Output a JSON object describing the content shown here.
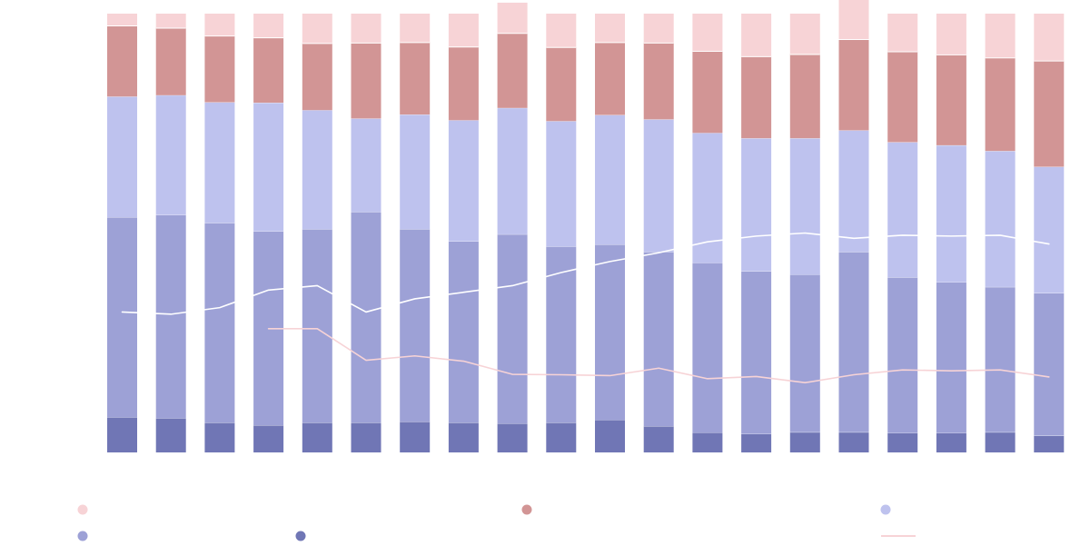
{
  "chart_data": {
    "type": "bar",
    "stacked": true,
    "percent_stacked": true,
    "title": "",
    "xlabel": "",
    "ylabel": "",
    "ylim": [
      0,
      100
    ],
    "grid": false,
    "legend_position": "bottom",
    "categories": [
      "",
      "",
      "",
      "",
      "",
      "",
      "",
      "",
      "",
      "",
      "",
      "",
      "",
      "",
      "",
      "",
      "",
      "",
      "",
      ""
    ],
    "series": [
      {
        "color": "#7076b5",
        "values": [
          8.0,
          7.8,
          6.8,
          6.2,
          6.8,
          6.8,
          7.0,
          6.8,
          6.6,
          6.8,
          7.4,
          6.0,
          4.5,
          4.2,
          4.6,
          4.6,
          4.4,
          4.4,
          4.6,
          3.8
        ]
      },
      {
        "color": "#9da1d6",
        "values": [
          45.6,
          46.3,
          45.5,
          44.2,
          44.1,
          48.0,
          43.9,
          41.3,
          43.1,
          40.1,
          40.0,
          39.7,
          38.7,
          37.1,
          35.9,
          41.1,
          35.5,
          34.4,
          33.1,
          32.5
        ]
      },
      {
        "color": "#bec2ee",
        "values": [
          27.5,
          27.3,
          27.5,
          29.3,
          27.1,
          21.3,
          26.1,
          27.6,
          28.8,
          28.6,
          29.5,
          30.2,
          29.6,
          30.3,
          31.1,
          27.7,
          30.8,
          31.2,
          31.0,
          28.8
        ]
      },
      {
        "color": "#d29595",
        "values": [
          16.2,
          15.4,
          15.2,
          14.9,
          15.3,
          17.3,
          16.5,
          16.8,
          17.1,
          16.9,
          16.6,
          17.5,
          18.7,
          18.7,
          19.2,
          20.8,
          20.7,
          20.7,
          21.3,
          24.2
        ]
      },
      {
        "color": "#f7d3d6",
        "values": [
          2.7,
          3.2,
          5.0,
          5.4,
          6.7,
          6.6,
          6.5,
          7.5,
          6.9,
          7.6,
          6.5,
          6.6,
          8.5,
          9.7,
          9.2,
          9.8,
          8.6,
          9.3,
          10.0,
          10.7
        ]
      }
    ],
    "line_white": {
      "color": "#ffffff",
      "values": [
        32.0,
        31.5,
        33.0,
        37.0,
        38.0,
        32.0,
        35.0,
        36.5,
        38.0,
        41.0,
        43.5,
        45.5,
        48.0,
        49.3,
        50.0,
        48.8,
        49.5,
        49.3,
        49.5,
        47.5
      ]
    },
    "line_pink": {
      "color": "#f7d3d6",
      "start_index": 3,
      "values": [
        null,
        null,
        null,
        28.2,
        28.2,
        21.0,
        22.0,
        20.8,
        17.8,
        17.7,
        17.5,
        19.2,
        16.8,
        17.3,
        15.9,
        17.7,
        18.8,
        18.6,
        18.8,
        17.2
      ]
    },
    "legend": [
      {
        "row": 0,
        "col": 0,
        "color": "#f7d3d6",
        "marker": "circle",
        "label": ""
      },
      {
        "row": 0,
        "col": 1,
        "color": "#d29595",
        "marker": "circle",
        "label": ""
      },
      {
        "row": 0,
        "col": 2,
        "color": "#bec2ee",
        "marker": "circle",
        "label": ""
      },
      {
        "row": 1,
        "col": 0,
        "color": "#9da1d6",
        "marker": "circle",
        "label": ""
      },
      {
        "row": 1,
        "col": 0.5,
        "color": "#7076b5",
        "marker": "circle",
        "label": ""
      },
      {
        "row": 1,
        "col": 2,
        "color": "#f7d3d6",
        "marker": "line",
        "label": ""
      }
    ]
  }
}
